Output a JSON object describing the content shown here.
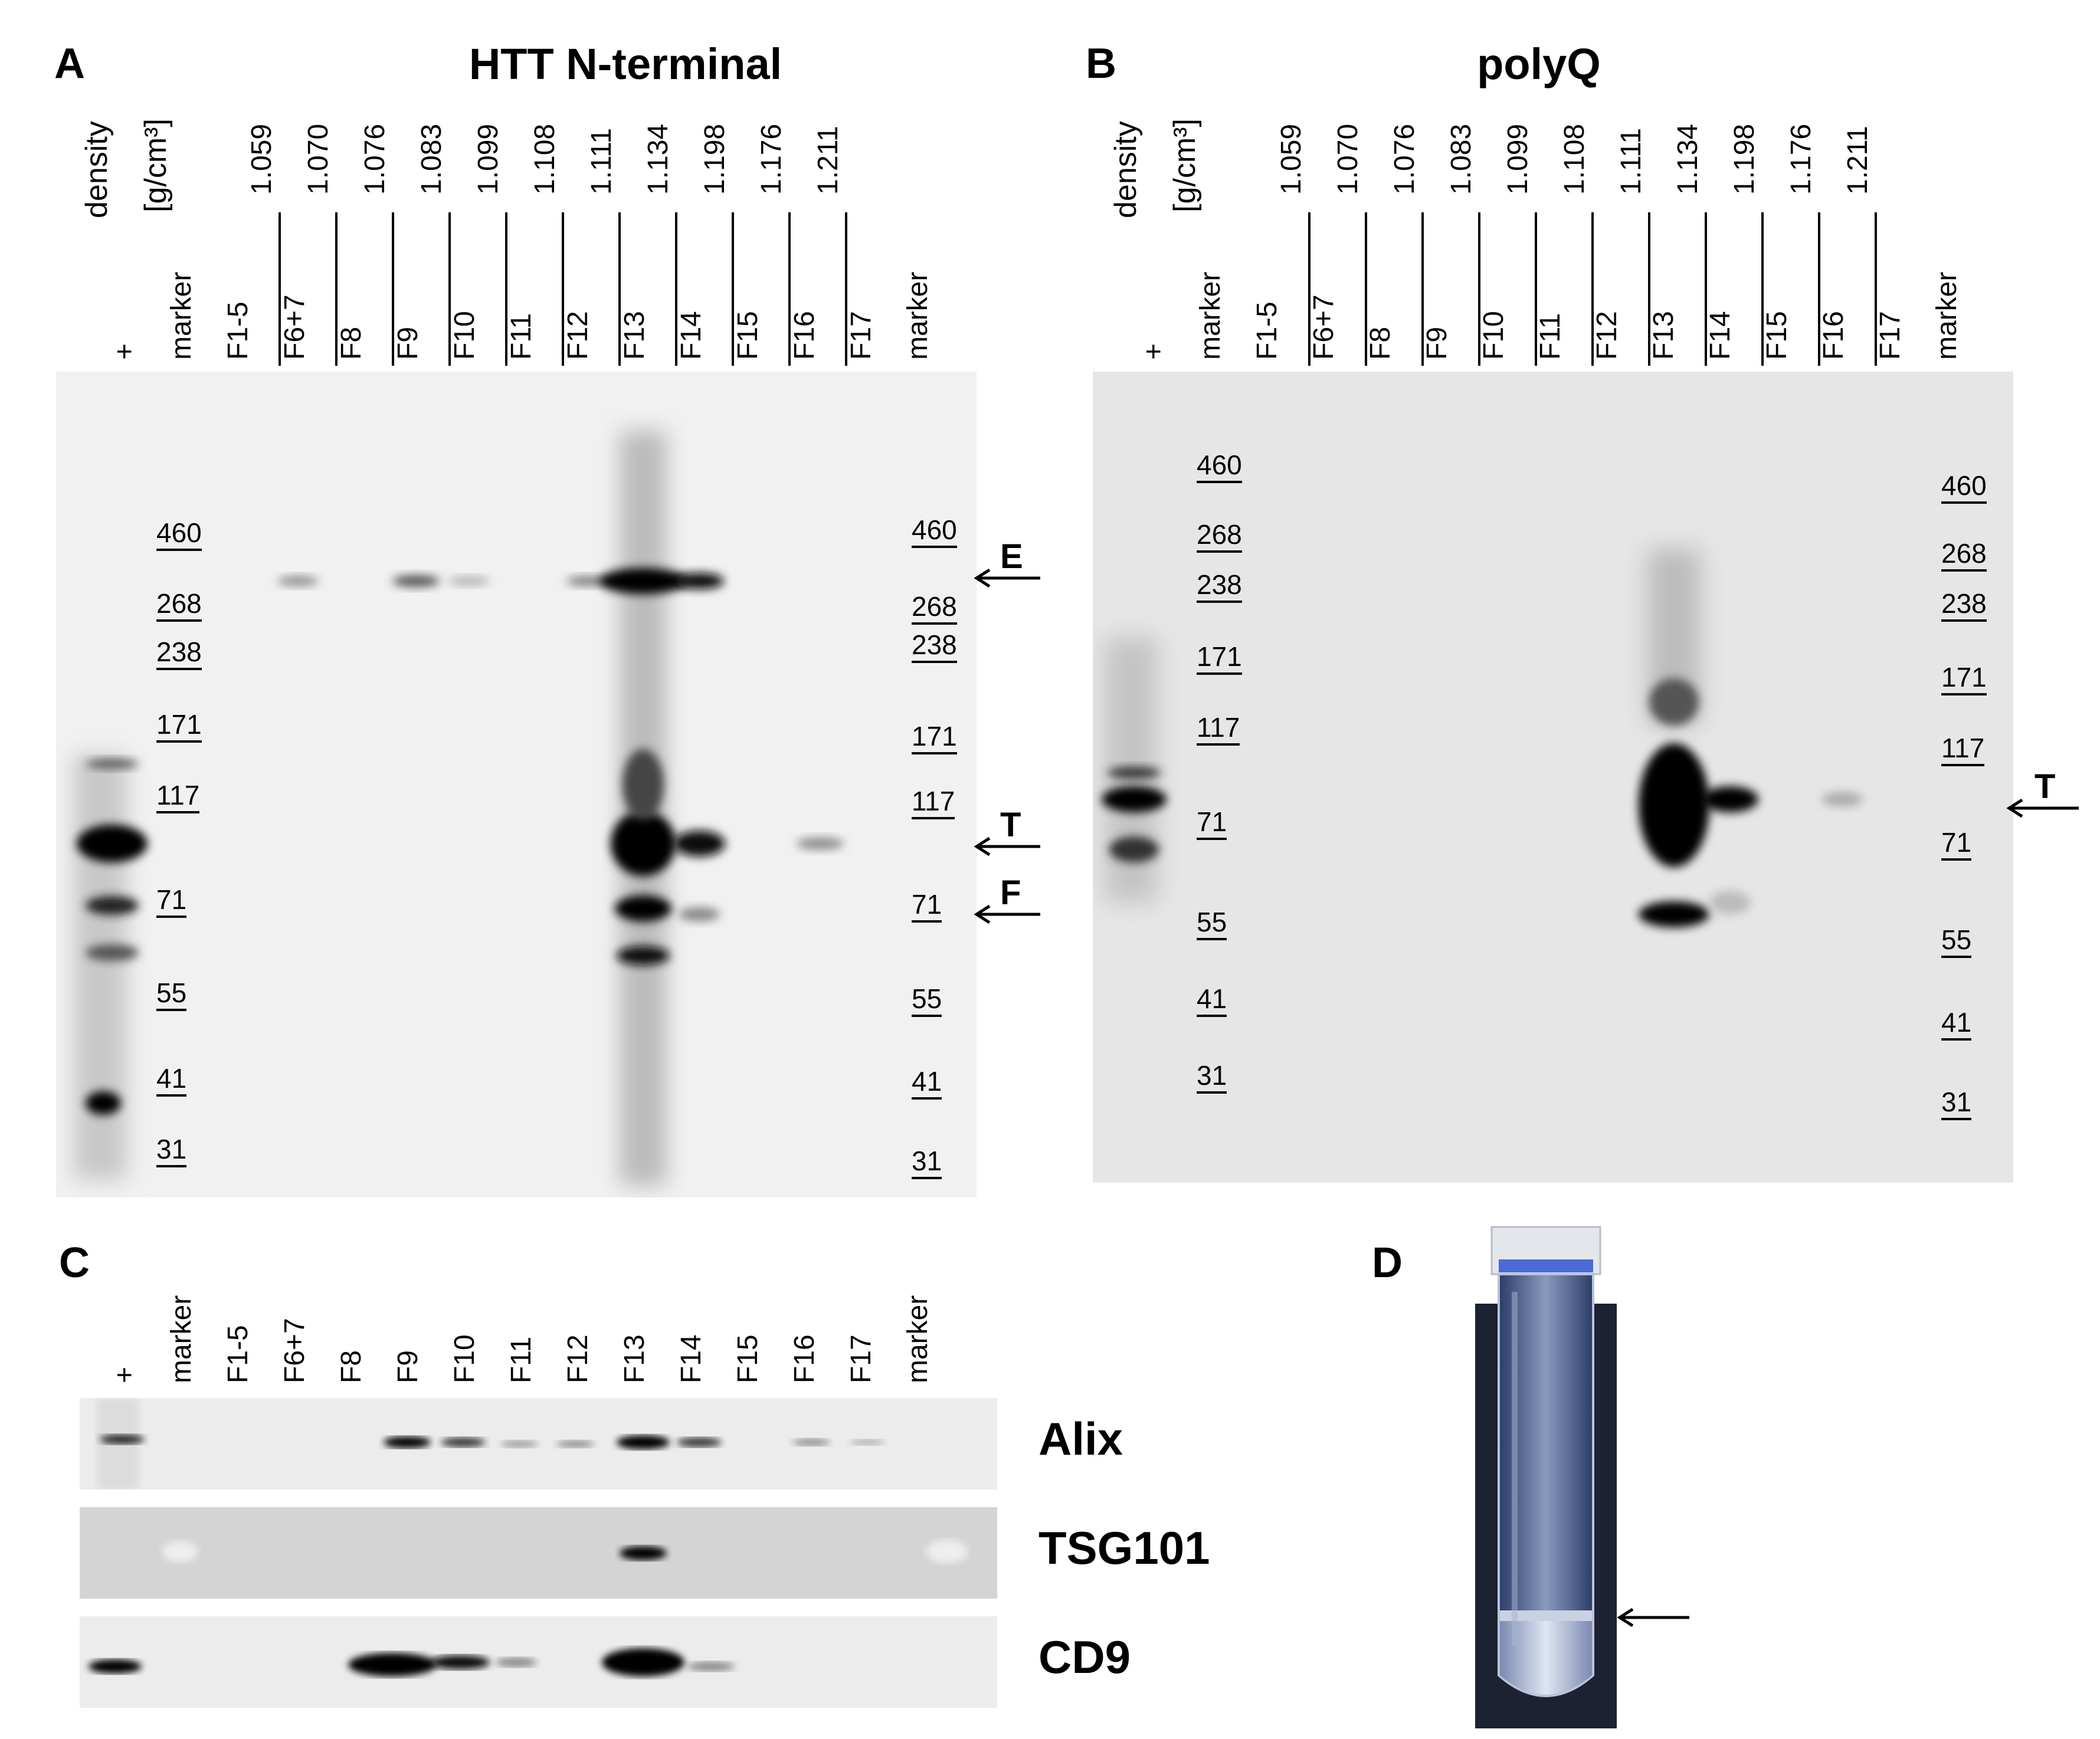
{
  "panel_a": {
    "letter": "A",
    "title": "HTT N-terminal",
    "density_label": "density",
    "density_unit": "[g/cm³]",
    "lanes": [
      "+",
      "marker",
      "F1-5",
      "F6+7",
      "F8",
      "F9",
      "F10",
      "F11",
      "F12",
      "F13",
      "F14",
      "F15",
      "F16",
      "F17",
      "marker"
    ],
    "densities": [
      "1.059",
      "1.070",
      "1.076",
      "1.083",
      "1.099",
      "1.108",
      "1.111",
      "1.134",
      "1.198",
      "1.176",
      "1.211"
    ],
    "markers_left": [
      "460",
      "268",
      "238",
      "171",
      "117",
      "71",
      "55",
      "41",
      "31"
    ],
    "markers_right": [
      "460",
      "268",
      "238",
      "171",
      "117",
      "71",
      "55",
      "41",
      "31"
    ],
    "arrows": [
      "E",
      "T",
      "F"
    ]
  },
  "panel_b": {
    "letter": "B",
    "title": "polyQ",
    "density_label": "density",
    "density_unit": "[g/cm³]",
    "lanes": [
      "+",
      "marker",
      "F1-5",
      "F6+7",
      "F8",
      "F9",
      "F10",
      "F11",
      "F12",
      "F13",
      "F14",
      "F15",
      "F16",
      "F17",
      "marker"
    ],
    "densities": [
      "1.059",
      "1.070",
      "1.076",
      "1.083",
      "1.099",
      "1.108",
      "1.111",
      "1.134",
      "1.198",
      "1.176",
      "1.211"
    ],
    "markers_left": [
      "460",
      "268",
      "238",
      "171",
      "117",
      "71",
      "55",
      "41",
      "31"
    ],
    "markers_right": [
      "460",
      "268",
      "238",
      "171",
      "117",
      "71",
      "55",
      "41",
      "31"
    ],
    "arrows": [
      "T"
    ]
  },
  "panel_c": {
    "letter": "C",
    "lanes": [
      "+",
      "marker",
      "F1-5",
      "F6+7",
      "F8",
      "F9",
      "F10",
      "F11",
      "F12",
      "F13",
      "F14",
      "F15",
      "F16",
      "F17",
      "marker"
    ],
    "strips": [
      "Alix",
      "TSG101",
      "CD9"
    ]
  },
  "panel_d": {
    "letter": "D"
  }
}
